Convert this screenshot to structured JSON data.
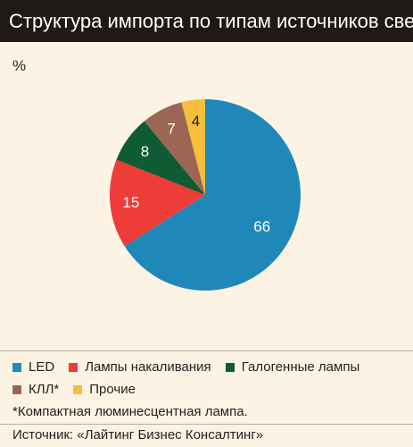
{
  "header": {
    "title": "Структура импорта по типам источников света"
  },
  "unit_label": "%",
  "chart_data": {
    "type": "pie",
    "title": "Структура импорта по типам источников света",
    "unit": "%",
    "slices": [
      {
        "name": "LED",
        "value": 66,
        "color": "#1f88b8"
      },
      {
        "name": "Лампы накаливания",
        "value": 15,
        "color": "#ee3c38"
      },
      {
        "name": "Галогенные лампы",
        "value": 8,
        "color": "#0f5c34"
      },
      {
        "name": "КЛЛ*",
        "value": 7,
        "color": "#9b6654"
      },
      {
        "name": "Прочие",
        "value": 4,
        "color": "#f7bd3c"
      }
    ],
    "legend_position": "bottom"
  },
  "legend": [
    {
      "label": "LED"
    },
    {
      "label": "Лампы накаливания"
    },
    {
      "label": "Галогенные лампы"
    },
    {
      "label": "КЛЛ*"
    },
    {
      "label": "Прочие"
    }
  ],
  "footnote": "*Компактная люминесцентная лампа.",
  "source": "Источник: «Лайтинг Бизнес Консалтинг»"
}
